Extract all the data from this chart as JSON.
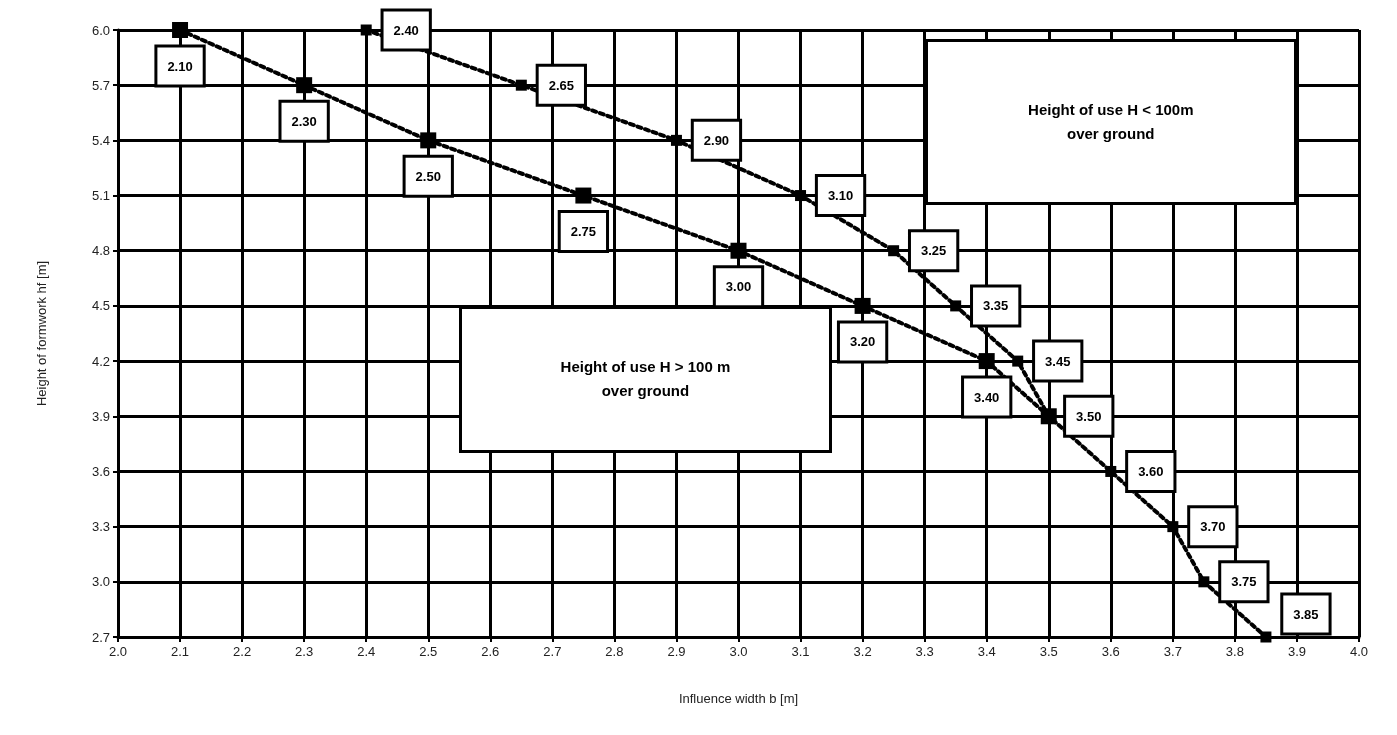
{
  "chart_data": {
    "type": "line",
    "xlabel": "Influence width b [m]",
    "ylabel": "Height of formwork hf [m]",
    "xlim": [
      2.0,
      4.0
    ],
    "xticks": [
      {
        "value": 2.0,
        "label": "2.0"
      },
      2.1,
      2.2,
      2.3,
      2.4,
      2.5,
      2.6,
      2.7,
      2.8,
      2.9,
      {
        "value": 3.0,
        "label": "3.0"
      },
      3.1,
      3.2,
      3.3,
      3.4,
      3.5,
      3.6,
      3.7,
      3.8,
      3.9,
      {
        "value": 4.0,
        "label": "4.0"
      }
    ],
    "ylim": [
      2.7,
      6.0
    ],
    "yticks": [
      2.7,
      {
        "value": 3.0,
        "label": "3.0"
      },
      3.3,
      3.6,
      3.9,
      4.2,
      4.5,
      4.8,
      5.1,
      5.4,
      5.7,
      {
        "value": 6.0,
        "label": "6.0"
      }
    ],
    "grid": true,
    "marker": "square",
    "line_style": "dotted",
    "series": [
      {
        "color": "#000000",
        "x": [
          2.1,
          2.3,
          2.5,
          2.75,
          3.0,
          3.2,
          3.4,
          3.5
        ],
        "values": [
          6.0,
          5.7,
          5.4,
          5.1,
          4.8,
          4.5,
          4.2,
          3.9
        ]
      },
      {
        "color": "#000000",
        "x": [
          2.4,
          2.65,
          2.9,
          3.1,
          3.25,
          3.35,
          3.45,
          3.5,
          3.6,
          3.7,
          3.75,
          3.85
        ],
        "values": [
          6.0,
          5.7,
          5.4,
          5.1,
          4.8,
          4.5,
          4.2,
          3.9,
          3.6,
          3.3,
          3.0,
          2.7
        ]
      }
    ],
    "annotations": [
      "Height of use H < 100m\nover ground",
      "Height of use H > 100 m\nover ground",
      {
        "text": "2.10",
        "x": 2.1,
        "y": 6.0
      },
      {
        "text": "2.30",
        "x": 2.3,
        "y": 5.7
      },
      {
        "text": "2.50",
        "x": 2.5,
        "y": 5.4
      },
      {
        "text": "2.75",
        "x": 2.75,
        "y": 5.1
      },
      {
        "text": "3.00",
        "x": 3.0,
        "y": 4.8
      },
      {
        "text": "3.20",
        "x": 3.2,
        "y": 4.5
      },
      {
        "text": "3.40",
        "x": 3.4,
        "y": 4.2
      },
      {
        "text": "2.40",
        "x": 2.4,
        "y": 6.0
      },
      {
        "text": "2.65",
        "x": 2.65,
        "y": 5.7
      },
      {
        "text": "2.90",
        "x": 2.9,
        "y": 5.4
      },
      {
        "text": "3.10",
        "x": 3.1,
        "y": 5.1
      },
      {
        "text": "3.25",
        "x": 3.25,
        "y": 4.8
      },
      {
        "text": "3.35",
        "x": 3.35,
        "y": 4.5
      },
      {
        "text": "3.45",
        "x": 3.45,
        "y": 4.2
      },
      {
        "text": "3.50",
        "x": 3.5,
        "y": 3.9
      },
      {
        "text": "3.60",
        "x": 3.6,
        "y": 3.6
      },
      {
        "text": "3.70",
        "x": 3.7,
        "y": 3.3
      },
      {
        "text": "3.75",
        "x": 3.75,
        "y": 3.0
      },
      {
        "text": "3.85",
        "x": 3.85,
        "y": 2.7
      }
    ]
  }
}
